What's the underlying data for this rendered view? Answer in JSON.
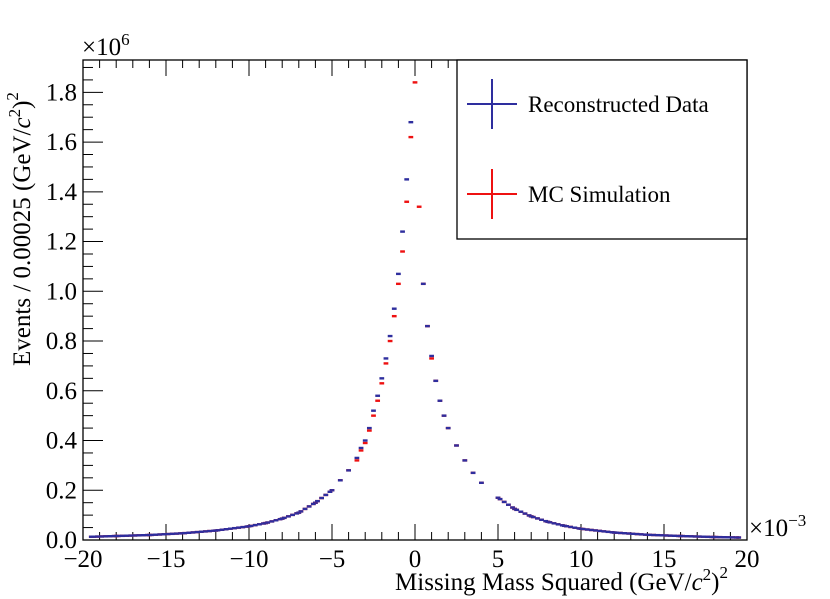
{
  "chart_data": {
    "type": "scatter",
    "title": "",
    "xlabel": "Missing Mass Squared (GeV/",
    "xlabel_c": "c",
    "xlabel_exp": "2",
    "xlabel_tail": ")",
    "xlabel_sq": "2",
    "ylabel": "Events / 0.00025 (GeV/",
    "ylabel_c": "c",
    "ylabel_exp": "2",
    "ylabel_tail": ")",
    "ylabel_sq": "2",
    "x_multiplier": "×10",
    "x_multiplier_exp": "−3",
    "y_multiplier": "×10",
    "y_multiplier_exp": "6",
    "xlim": [
      -20,
      20
    ],
    "ylim": [
      0,
      1.93
    ],
    "xticks": [
      -20,
      -15,
      -10,
      -5,
      0,
      5,
      10,
      15,
      20
    ],
    "xtick_labels": [
      "−20",
      "−15",
      "−10",
      "−5",
      "0",
      "5",
      "10",
      "15",
      "20"
    ],
    "yticks": [
      0,
      0.2,
      0.4,
      0.6,
      0.8,
      1.0,
      1.2,
      1.4,
      1.6,
      1.8
    ],
    "ytick_labels": [
      "0.0",
      "0.2",
      "0.4",
      "0.6",
      "0.8",
      "1.0",
      "1.2",
      "1.4",
      "1.6",
      "1.8"
    ],
    "legend_position": "top-right",
    "series": [
      {
        "name": "Reconstructed Data",
        "color": "#2e2e9e",
        "points": [
          {
            "x": -19.5,
            "y": 0.013
          },
          {
            "x": -18.0,
            "y": 0.016
          },
          {
            "x": -16.0,
            "y": 0.02
          },
          {
            "x": -14.0,
            "y": 0.027
          },
          {
            "x": -12.0,
            "y": 0.038
          },
          {
            "x": -10.0,
            "y": 0.055
          },
          {
            "x": -9.0,
            "y": 0.068
          },
          {
            "x": -8.0,
            "y": 0.086
          },
          {
            "x": -7.0,
            "y": 0.11
          },
          {
            "x": -6.0,
            "y": 0.15
          },
          {
            "x": -5.0,
            "y": 0.2
          },
          {
            "x": -4.5,
            "y": 0.24
          },
          {
            "x": -4.0,
            "y": 0.28
          },
          {
            "x": -3.5,
            "y": 0.33
          },
          {
            "x": -3.25,
            "y": 0.37
          },
          {
            "x": -3.0,
            "y": 0.4
          },
          {
            "x": -2.75,
            "y": 0.45
          },
          {
            "x": -2.5,
            "y": 0.52
          },
          {
            "x": -2.25,
            "y": 0.58
          },
          {
            "x": -2.0,
            "y": 0.65
          },
          {
            "x": -1.75,
            "y": 0.73
          },
          {
            "x": -1.5,
            "y": 0.82
          },
          {
            "x": -1.25,
            "y": 0.93
          },
          {
            "x": -1.0,
            "y": 1.07
          },
          {
            "x": -0.75,
            "y": 1.24
          },
          {
            "x": -0.5,
            "y": 1.45
          },
          {
            "x": -0.25,
            "y": 1.68
          },
          {
            "x": 0.5,
            "y": 1.03
          },
          {
            "x": 0.75,
            "y": 0.86
          },
          {
            "x": 1.0,
            "y": 0.74
          },
          {
            "x": 1.25,
            "y": 0.64
          },
          {
            "x": 1.5,
            "y": 0.56
          },
          {
            "x": 1.75,
            "y": 0.5
          },
          {
            "x": 2.0,
            "y": 0.45
          },
          {
            "x": 2.5,
            "y": 0.38
          },
          {
            "x": 3.0,
            "y": 0.32
          },
          {
            "x": 3.5,
            "y": 0.27
          },
          {
            "x": 4.0,
            "y": 0.23
          },
          {
            "x": 5.0,
            "y": 0.17
          },
          {
            "x": 6.0,
            "y": 0.125
          },
          {
            "x": 7.0,
            "y": 0.095
          },
          {
            "x": 8.0,
            "y": 0.073
          },
          {
            "x": 9.0,
            "y": 0.057
          },
          {
            "x": 10.0,
            "y": 0.045
          },
          {
            "x": 12.0,
            "y": 0.03
          },
          {
            "x": 14.0,
            "y": 0.021
          },
          {
            "x": 16.0,
            "y": 0.016
          },
          {
            "x": 18.0,
            "y": 0.012
          },
          {
            "x": 19.5,
            "y": 0.01
          }
        ]
      },
      {
        "name": "MC Simulation",
        "color": "#ee1111",
        "points": [
          {
            "x": -19.5,
            "y": 0.013
          },
          {
            "x": -18.0,
            "y": 0.016
          },
          {
            "x": -16.0,
            "y": 0.02
          },
          {
            "x": -14.0,
            "y": 0.027
          },
          {
            "x": -12.0,
            "y": 0.038
          },
          {
            "x": -10.0,
            "y": 0.055
          },
          {
            "x": -9.0,
            "y": 0.068
          },
          {
            "x": -8.0,
            "y": 0.086
          },
          {
            "x": -7.0,
            "y": 0.11
          },
          {
            "x": -6.0,
            "y": 0.15
          },
          {
            "x": -5.0,
            "y": 0.2
          },
          {
            "x": -4.5,
            "y": 0.24
          },
          {
            "x": -4.0,
            "y": 0.28
          },
          {
            "x": -3.5,
            "y": 0.32
          },
          {
            "x": -3.25,
            "y": 0.36
          },
          {
            "x": -3.0,
            "y": 0.39
          },
          {
            "x": -2.75,
            "y": 0.44
          },
          {
            "x": -2.5,
            "y": 0.5
          },
          {
            "x": -2.25,
            "y": 0.56
          },
          {
            "x": -2.0,
            "y": 0.63
          },
          {
            "x": -1.75,
            "y": 0.71
          },
          {
            "x": -1.5,
            "y": 0.8
          },
          {
            "x": -1.25,
            "y": 0.9
          },
          {
            "x": -1.0,
            "y": 1.03
          },
          {
            "x": -0.75,
            "y": 1.16
          },
          {
            "x": -0.5,
            "y": 1.36
          },
          {
            "x": -0.25,
            "y": 1.62
          },
          {
            "x": 0.0,
            "y": 1.84
          },
          {
            "x": 0.25,
            "y": 1.34
          },
          {
            "x": 0.5,
            "y": 1.03
          },
          {
            "x": 0.75,
            "y": 0.86
          },
          {
            "x": 1.0,
            "y": 0.73
          },
          {
            "x": 1.25,
            "y": 0.64
          },
          {
            "x": 1.5,
            "y": 0.56
          },
          {
            "x": 1.75,
            "y": 0.5
          },
          {
            "x": 2.0,
            "y": 0.45
          },
          {
            "x": 2.5,
            "y": 0.38
          },
          {
            "x": 3.0,
            "y": 0.32
          },
          {
            "x": 3.5,
            "y": 0.27
          },
          {
            "x": 4.0,
            "y": 0.23
          },
          {
            "x": 5.0,
            "y": 0.17
          },
          {
            "x": 6.0,
            "y": 0.125
          },
          {
            "x": 7.0,
            "y": 0.095
          },
          {
            "x": 8.0,
            "y": 0.073
          },
          {
            "x": 9.0,
            "y": 0.057
          },
          {
            "x": 10.0,
            "y": 0.045
          },
          {
            "x": 12.0,
            "y": 0.03
          },
          {
            "x": 14.0,
            "y": 0.021
          },
          {
            "x": 16.0,
            "y": 0.016
          },
          {
            "x": 18.0,
            "y": 0.012
          },
          {
            "x": 19.5,
            "y": 0.01
          }
        ]
      }
    ]
  }
}
